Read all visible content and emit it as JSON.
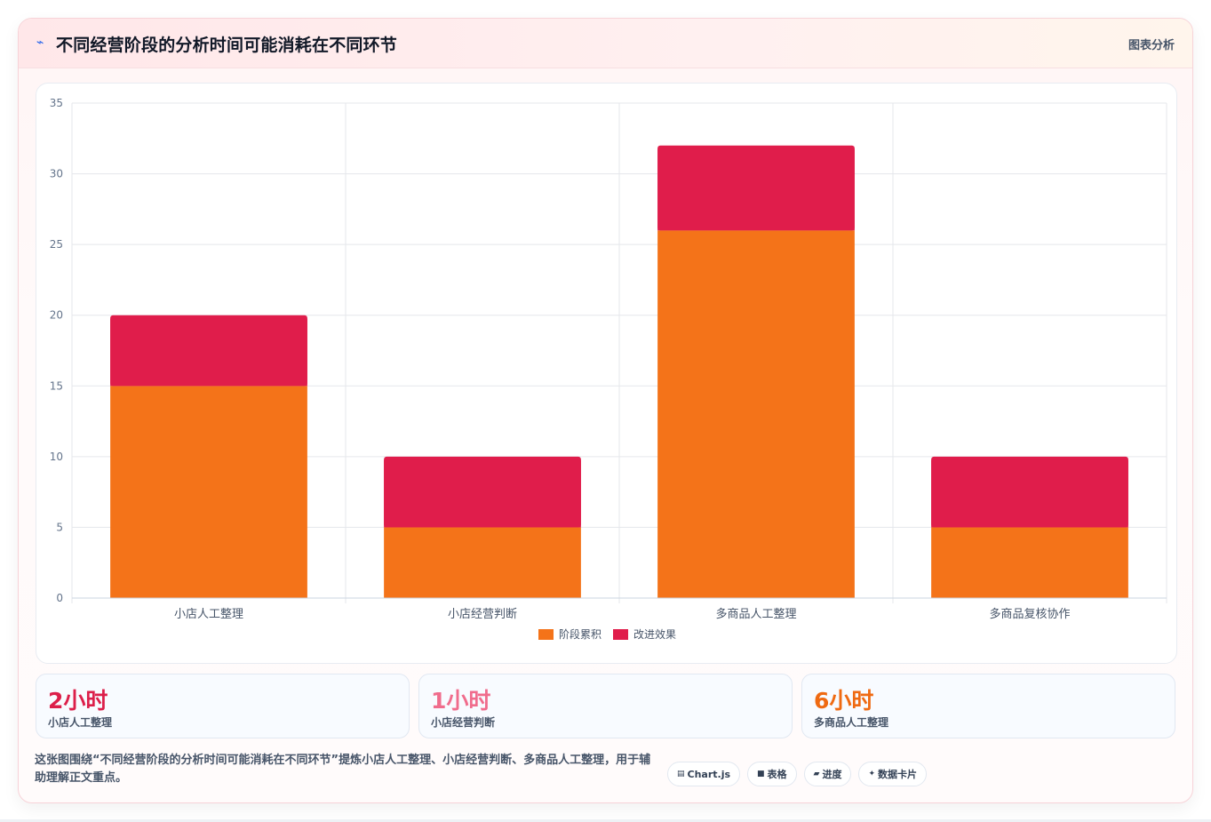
{
  "header": {
    "icon": "bolt-icon",
    "title": "不同经营阶段的分析时间可能消耗在不同环节",
    "link_label": "图表分析"
  },
  "chart_data": {
    "type": "bar",
    "stacked": true,
    "categories": [
      "小店人工整理",
      "小店经营判断",
      "多商品人工整理",
      "多商品复核协作"
    ],
    "series": [
      {
        "name": "阶段累积",
        "values": [
          15,
          5,
          26,
          5
        ],
        "color": "#f47319"
      },
      {
        "name": "改进效果",
        "values": [
          5,
          5,
          6,
          5
        ],
        "color": "#e01d4b"
      }
    ],
    "ylim": [
      0,
      35
    ],
    "yticks": [
      0,
      5,
      10,
      15,
      20,
      25,
      30,
      35
    ],
    "grid": true,
    "legend_position": "bottom"
  },
  "stats": [
    {
      "value": "2小时",
      "label": "小店人工整理",
      "color": "#dc1f4a"
    },
    {
      "value": "1小时",
      "label": "小店经营判断",
      "color": "#f06c8c"
    },
    {
      "value": "6小时",
      "label": "多商品人工整理",
      "color": "#ef6a12"
    }
  ],
  "caption": "这张图围绕“不同经营阶段的分析时间可能消耗在不同环节”提炼小店人工整理、小店经营判断、多商品人工整理，用于辅助理解正文重点。",
  "chips": [
    {
      "icon": "chart-icon",
      "label": "Chart.js"
    },
    {
      "icon": "table-icon",
      "label": "表格"
    },
    {
      "icon": "progress-icon",
      "label": "进度"
    },
    {
      "icon": "card-icon",
      "label": "数据卡片"
    }
  ]
}
